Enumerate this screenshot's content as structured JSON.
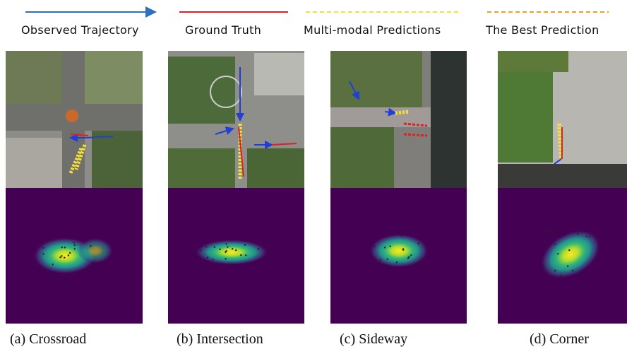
{
  "legend": [
    {
      "label": "Observed Trajectory"
    },
    {
      "label": "Ground Truth"
    },
    {
      "label": "Multi-modal Predictions"
    },
    {
      "label": "The Best Prediction"
    }
  ],
  "panels": [
    {
      "caption": "(a) Crossroad"
    },
    {
      "caption": "(b) Intersection"
    },
    {
      "caption": "(c) Sideway"
    },
    {
      "caption": "(d) Corner"
    }
  ]
}
